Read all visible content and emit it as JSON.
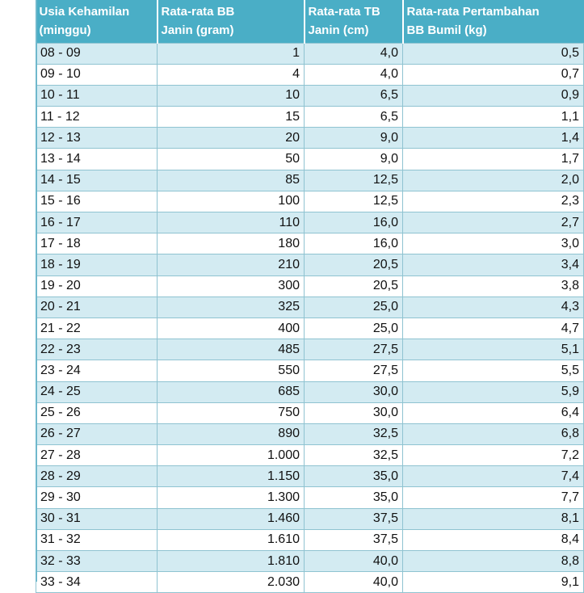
{
  "table": {
    "headers": [
      "Usia Kehamilan\n(minggu)",
      "Rata-rata BB\nJanin (gram)",
      "Rata-rata TB\nJanin (cm)",
      "Rata-rata Pertambahan\nBB Bumil (kg)"
    ],
    "rows": [
      [
        "08 - 09",
        "1",
        "4,0",
        "0,5"
      ],
      [
        "09 - 10",
        "4",
        "4,0",
        "0,7"
      ],
      [
        "10 - 11",
        "10",
        "6,5",
        "0,9"
      ],
      [
        "11 - 12",
        "15",
        "6,5",
        "1,1"
      ],
      [
        "12 - 13",
        "20",
        "9,0",
        "1,4"
      ],
      [
        "13 - 14",
        "50",
        "9,0",
        "1,7"
      ],
      [
        "14 - 15",
        "85",
        "12,5",
        "2,0"
      ],
      [
        "15 - 16",
        "100",
        "12,5",
        "2,3"
      ],
      [
        "16 - 17",
        "110",
        "16,0",
        "2,7"
      ],
      [
        "17 - 18",
        "180",
        "16,0",
        "3,0"
      ],
      [
        "18 - 19",
        "210",
        "20,5",
        "3,4"
      ],
      [
        "19 - 20",
        "300",
        "20,5",
        "3,8"
      ],
      [
        "20 - 21",
        "325",
        "25,0",
        "4,3"
      ],
      [
        "21 - 22",
        "400",
        "25,0",
        "4,7"
      ],
      [
        "22 - 23",
        "485",
        "27,5",
        "5,1"
      ],
      [
        "23 - 24",
        "550",
        "27,5",
        "5,5"
      ],
      [
        "24 - 25",
        "685",
        "30,0",
        "5,9"
      ],
      [
        "25 - 26",
        "750",
        "30,0",
        "6,4"
      ],
      [
        "26 - 27",
        "890",
        "32,5",
        "6,8"
      ],
      [
        "27 - 28",
        "1.000",
        "32,5",
        "7,2"
      ],
      [
        "28 - 29",
        "1.150",
        "35,0",
        "7,4"
      ],
      [
        "29 - 30",
        "1.300",
        "35,0",
        "7,7"
      ],
      [
        "30 - 31",
        "1.460",
        "37,5",
        "8,1"
      ],
      [
        "31 - 32",
        "1.610",
        "37,5",
        "8,4"
      ],
      [
        "32 - 33",
        "1.810",
        "40,0",
        "8,8"
      ],
      [
        "33 - 34",
        "2.030",
        "40,0",
        "9,1"
      ]
    ]
  },
  "colors": {
    "header_bg": "#4aaec6",
    "band_bg": "#d3ebf2",
    "grid": "#8fc3d1"
  }
}
